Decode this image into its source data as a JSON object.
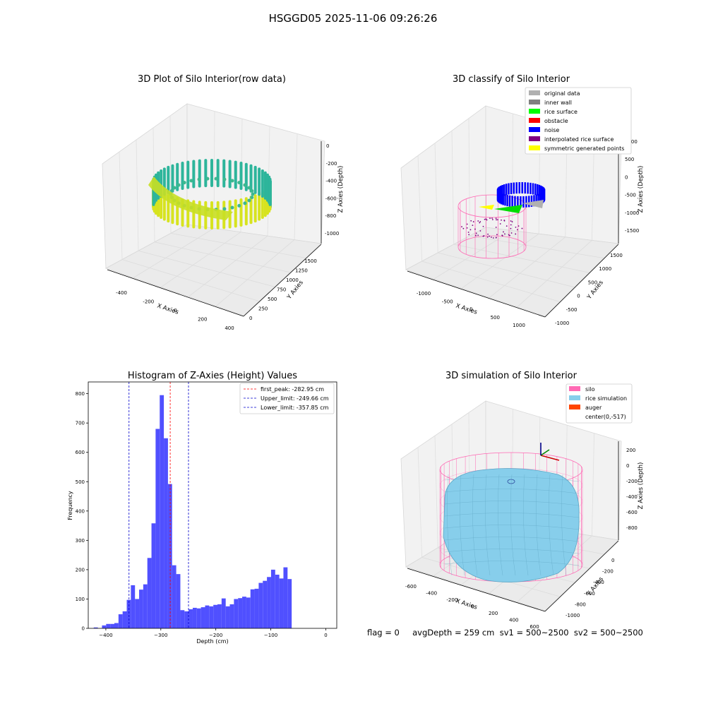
{
  "suptitle": "HSGGD05 2025-11-06 09:26:26",
  "status_line": "flag = 0     avgDepth = 259 cm  sv1 = 500~2500  sv2 = 500~2500",
  "colors": {
    "hist_bar": "#5050ff",
    "peak_line": "#ff0000",
    "limit_line": "#0000cc",
    "silo": "#ff69b4",
    "rice": "#87ceeb",
    "auger": "#ff4500",
    "noise": "#0000ff",
    "rice_surface": "#00ff00",
    "original": "#b0b0b0",
    "inner_wall": "#808080",
    "obstacle": "#ff0000",
    "interpolated": "#800080",
    "symmetric": "#ffff00"
  },
  "panel1": {
    "title": "3D Plot of Silo Interior(row data)",
    "xlabel": "X Axies",
    "ylabel": "Y Axies",
    "zlabel": "Z Axies (Depth)",
    "xticks": [
      "-400",
      "-200",
      "0",
      "200",
      "400"
    ],
    "yticks": [
      "0",
      "250",
      "500",
      "750",
      "1000",
      "1250",
      "1500"
    ],
    "zticks": [
      "0",
      "-200",
      "-400",
      "-600",
      "-800",
      "-1000"
    ]
  },
  "panel2": {
    "title": "3D classify of Silo Interior",
    "xlabel": "X Axies",
    "ylabel": "Y Axies",
    "zlabel": "Z Axies (Depth)",
    "xticks": [
      "-1000",
      "-500",
      "0",
      "500",
      "1000"
    ],
    "yticks": [
      "-1000",
      "-500",
      "0",
      "500",
      "1000",
      "1500"
    ],
    "zticks": [
      "1000",
      "500",
      "0",
      "-500",
      "-1000",
      "-1500"
    ],
    "legend": [
      {
        "label": "original data",
        "color": "#b0b0b0"
      },
      {
        "label": "inner wall",
        "color": "#808080"
      },
      {
        "label": "rice surface",
        "color": "#00ff00"
      },
      {
        "label": "obstacle",
        "color": "#ff0000"
      },
      {
        "label": "noise",
        "color": "#0000ff"
      },
      {
        "label": "interpolated rice surface",
        "color": "#800080"
      },
      {
        "label": "symmetric generated points",
        "color": "#ffff00"
      }
    ]
  },
  "panel4": {
    "title": "3D simulation of Silo Interior",
    "xlabel": "X Axies",
    "ylabel": "Y Axies",
    "zlabel": "Z Axies (Depth)",
    "xticks": [
      "-600",
      "-400",
      "-200",
      "0",
      "200",
      "400",
      "600"
    ],
    "yticks": [
      "-1000",
      "-800",
      "-600",
      "-400",
      "-200",
      "0"
    ],
    "zticks": [
      "200",
      "0",
      "-200",
      "-400",
      "-600",
      "-800"
    ],
    "legend": [
      {
        "label": "silo",
        "color": "#ff69b4"
      },
      {
        "label": "rice simulation",
        "color": "#87ceeb"
      },
      {
        "label": "auger",
        "color": "#ff4500"
      },
      {
        "label": "center(0,-517)",
        "color": ""
      }
    ]
  },
  "chart_data": [
    {
      "type": "bar",
      "title": "Histogram of Z-Axies (Height) Values",
      "xlabel": "Depth (cm)",
      "ylabel": "Frequency",
      "xlim": [
        -432,
        20
      ],
      "ylim": [
        0,
        840
      ],
      "xticks": [
        -400,
        -300,
        -200,
        -100,
        0
      ],
      "yticks": [
        0,
        100,
        200,
        300,
        400,
        500,
        600,
        700,
        800
      ],
      "bin_start": -422,
      "bin_width": 7.5,
      "values": [
        3,
        0,
        10,
        15,
        15,
        18,
        48,
        58,
        97,
        147,
        100,
        132,
        150,
        240,
        358,
        680,
        795,
        648,
        492,
        215,
        185,
        62,
        58,
        65,
        70,
        68,
        72,
        78,
        75,
        80,
        82,
        102,
        75,
        82,
        100,
        103,
        108,
        105,
        133,
        135,
        155,
        162,
        175,
        200,
        183,
        170,
        208,
        168
      ],
      "vlines": [
        {
          "name": "first_peak: -282.95 cm",
          "x": -282.95,
          "style": "peak"
        },
        {
          "name": "Upper_limit: -249.66 cm",
          "x": -249.66,
          "style": "limit"
        },
        {
          "name": "Lower_limit: -357.85 cm",
          "x": -357.85,
          "style": "limit"
        }
      ],
      "legend_position": "top-right",
      "grid": false
    }
  ]
}
